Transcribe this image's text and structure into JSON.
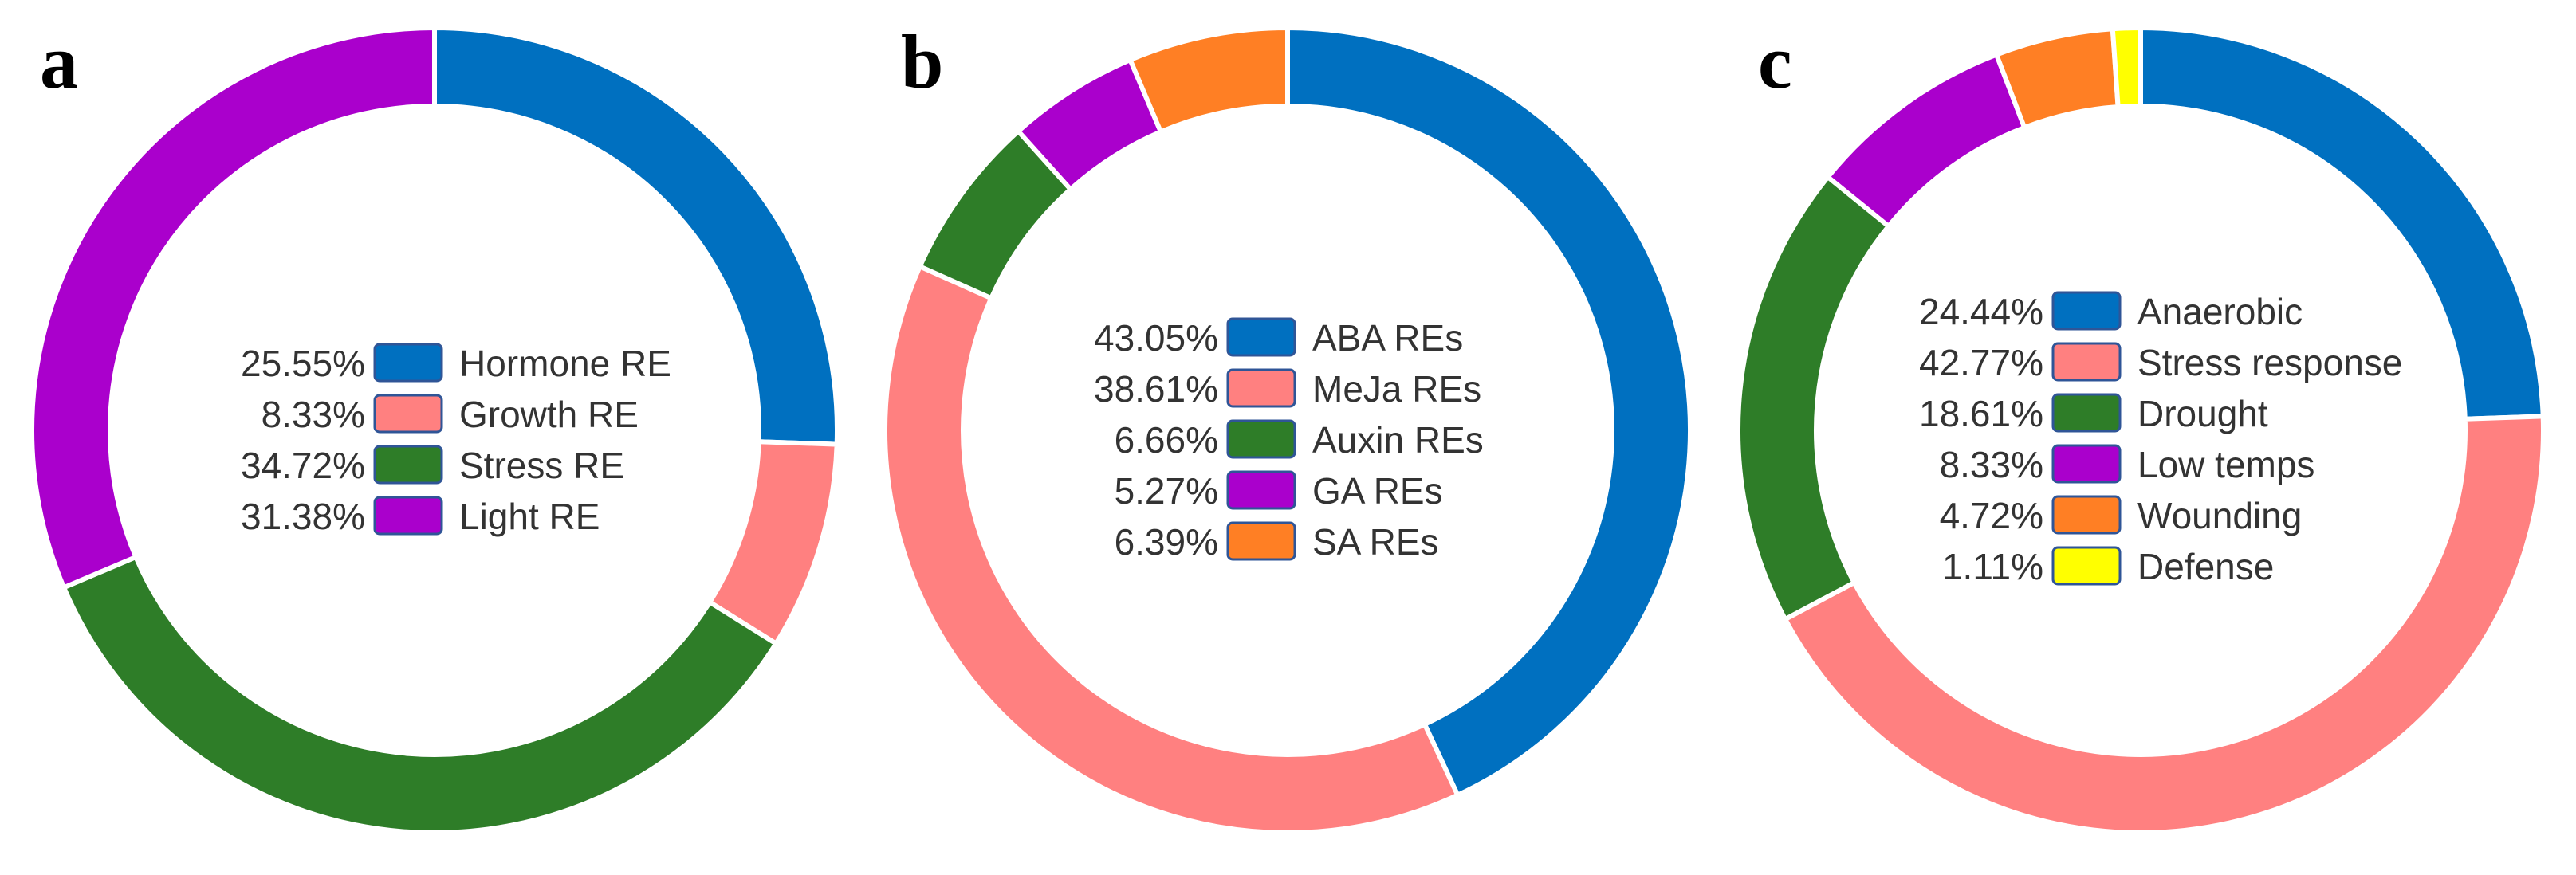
{
  "chart_data": [
    {
      "type": "pie",
      "panel_label": "a",
      "categories": [
        "Hormone RE",
        "Growth RE",
        "Stress RE",
        "Light RE"
      ],
      "values": [
        25.55,
        8.33,
        34.72,
        31.38
      ],
      "value_labels": [
        "25.55%",
        "8.33%",
        "34.72%",
        "31.38%"
      ],
      "colors": [
        "#0070C0",
        "#FF8080",
        "#2E7D28",
        "#AA00CC"
      ],
      "legend_position": "center"
    },
    {
      "type": "pie",
      "panel_label": "b",
      "categories": [
        "ABA REs",
        "MeJa REs",
        "Auxin REs",
        "GA REs",
        "SA REs"
      ],
      "values": [
        43.05,
        38.61,
        6.66,
        5.27,
        6.39
      ],
      "value_labels": [
        "43.05%",
        "38.61%",
        "6.66%",
        "5.27%",
        "6.39%"
      ],
      "colors": [
        "#0070C0",
        "#FF8080",
        "#2E7D28",
        "#AA00CC",
        "#FF7F24"
      ],
      "legend_position": "center"
    },
    {
      "type": "pie",
      "panel_label": "c",
      "categories": [
        "Anaerobic",
        "Stress response",
        "Drought",
        "Low temps",
        "Wounding",
        "Defense"
      ],
      "values": [
        24.44,
        42.77,
        18.61,
        8.33,
        4.72,
        1.11
      ],
      "value_labels": [
        "24.44%",
        "42.77%",
        "18.61%",
        "8.33%",
        "4.72%",
        "1.11%"
      ],
      "colors": [
        "#0070C0",
        "#FF8080",
        "#2E7D28",
        "#AA00CC",
        "#FF7F24",
        "#FFFF00"
      ],
      "legend_position": "center"
    }
  ]
}
